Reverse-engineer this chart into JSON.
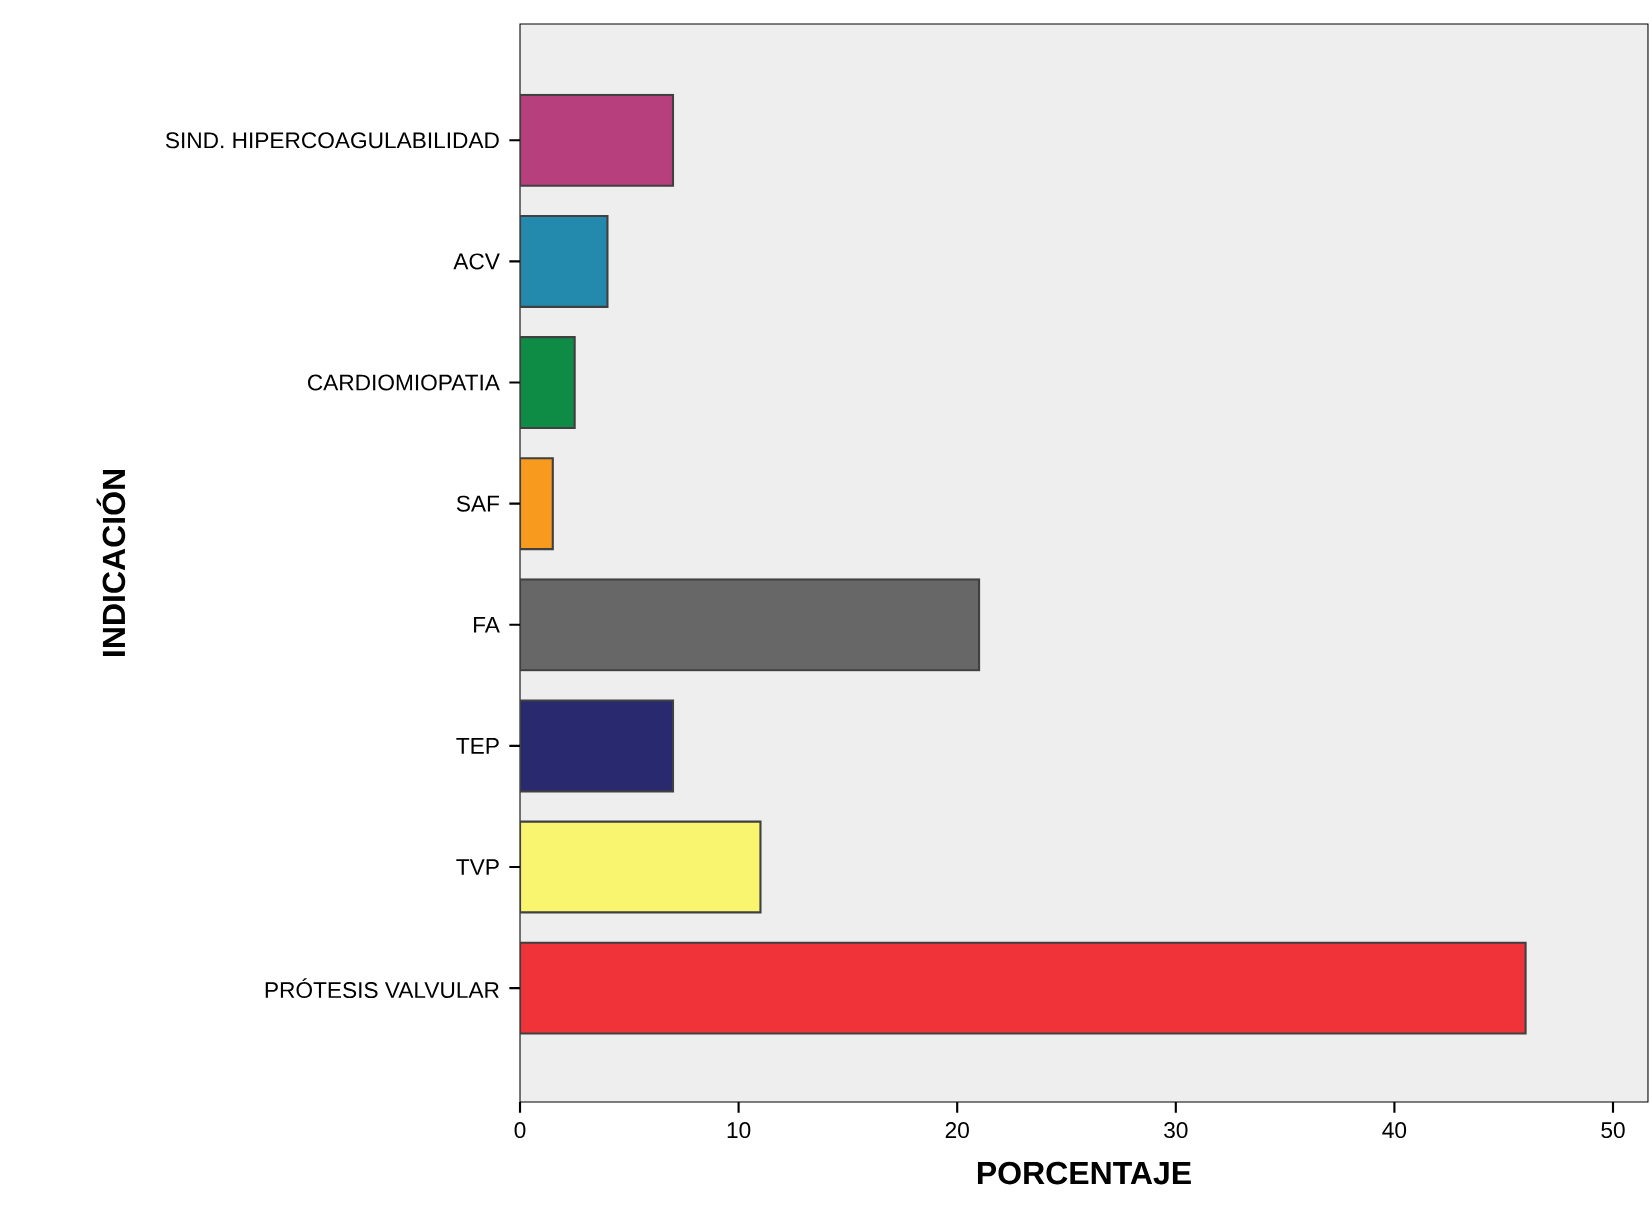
{
  "chart_data": {
    "type": "bar",
    "orientation": "horizontal",
    "xlabel": "PORCENTAJE",
    "ylabel": "INDICACIÓN",
    "categories": [
      "SIND. HIPERCOAGULABILIDAD",
      "ACV",
      "CARDIOMIOPATIA",
      "SAF",
      "FA",
      "TEP",
      "TVP",
      "PRÓTESIS VALVULAR"
    ],
    "values": [
      7,
      4,
      2.5,
      1.5,
      21,
      7,
      11,
      46
    ],
    "colors": [
      "#b83f7d",
      "#2389ad",
      "#0e8c46",
      "#f79a1e",
      "#676767",
      "#28296f",
      "#f9f56e",
      "#ef3338"
    ],
    "xlim": [
      0,
      51.6
    ],
    "xticks": [
      0,
      10,
      20,
      30,
      40,
      50
    ],
    "grid": false
  }
}
